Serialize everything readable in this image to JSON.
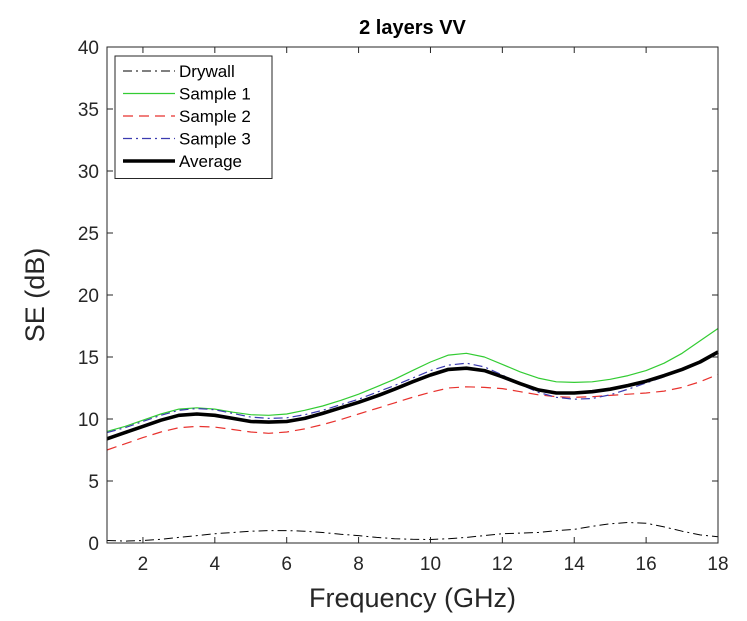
{
  "chart_data": {
    "type": "line",
    "title": "2 layers VV",
    "xlabel": "Frequency (GHz)",
    "ylabel": "SE (dB)",
    "xlim": [
      1,
      18
    ],
    "ylim": [
      0,
      40
    ],
    "xticks": [
      2,
      4,
      6,
      8,
      10,
      12,
      14,
      16,
      18
    ],
    "yticks": [
      0,
      5,
      10,
      15,
      20,
      25,
      30,
      35,
      40
    ],
    "grid": false,
    "legend_position": "top-left",
    "series": [
      {
        "name": "Drywall",
        "color": "#000000",
        "style": "dashdot",
        "width": 1,
        "x": [
          1,
          1.5,
          2,
          2.5,
          3,
          3.5,
          4,
          4.5,
          5,
          5.5,
          6,
          6.5,
          7,
          7.5,
          8,
          8.5,
          9,
          9.5,
          10,
          10.5,
          11,
          11.5,
          12,
          12.5,
          13,
          13.5,
          14,
          14.5,
          15,
          15.5,
          16,
          16.5,
          17,
          17.5,
          18
        ],
        "y": [
          0.2,
          0.15,
          0.2,
          0.3,
          0.45,
          0.6,
          0.75,
          0.85,
          0.95,
          1.0,
          1.0,
          0.95,
          0.85,
          0.7,
          0.6,
          0.45,
          0.35,
          0.3,
          0.28,
          0.35,
          0.45,
          0.6,
          0.75,
          0.8,
          0.85,
          1.0,
          1.1,
          1.35,
          1.55,
          1.65,
          1.6,
          1.3,
          0.95,
          0.65,
          0.5
        ]
      },
      {
        "name": "Sample 1",
        "color": "#33cc33",
        "style": "solid",
        "width": 1.2,
        "x": [
          1,
          1.5,
          2,
          2.5,
          3,
          3.5,
          4,
          4.5,
          5,
          5.5,
          6,
          6.5,
          7,
          7.5,
          8,
          8.5,
          9,
          9.5,
          10,
          10.5,
          11,
          11.5,
          12,
          12.5,
          13,
          13.5,
          14,
          14.5,
          15,
          15.5,
          16,
          16.5,
          17,
          17.5,
          18
        ],
        "y": [
          9.0,
          9.4,
          9.9,
          10.4,
          10.8,
          10.9,
          10.8,
          10.55,
          10.35,
          10.3,
          10.4,
          10.7,
          11.05,
          11.5,
          12.0,
          12.6,
          13.2,
          13.9,
          14.6,
          15.15,
          15.3,
          15.0,
          14.4,
          13.8,
          13.3,
          13.0,
          12.95,
          13.0,
          13.2,
          13.5,
          13.9,
          14.5,
          15.3,
          16.3,
          17.3
        ]
      },
      {
        "name": "Sample 2",
        "color": "#e8322e",
        "style": "dashed",
        "width": 1.2,
        "x": [
          1,
          1.5,
          2,
          2.5,
          3,
          3.5,
          4,
          4.5,
          5,
          5.5,
          6,
          6.5,
          7,
          7.5,
          8,
          8.5,
          9,
          9.5,
          10,
          10.5,
          11,
          11.5,
          12,
          12.5,
          13,
          13.5,
          14,
          14.5,
          15,
          15.5,
          16,
          16.5,
          17,
          17.5,
          18
        ],
        "y": [
          7.5,
          8.0,
          8.5,
          8.95,
          9.3,
          9.4,
          9.35,
          9.15,
          8.95,
          8.85,
          8.95,
          9.2,
          9.55,
          9.95,
          10.4,
          10.85,
          11.3,
          11.75,
          12.15,
          12.5,
          12.6,
          12.55,
          12.45,
          12.2,
          11.95,
          11.8,
          11.75,
          11.8,
          11.9,
          12.0,
          12.1,
          12.25,
          12.55,
          13.0,
          13.6
        ]
      },
      {
        "name": "Sample 3",
        "color": "#3b3bb0",
        "style": "dashdot",
        "width": 1.2,
        "x": [
          1,
          1.5,
          2,
          2.5,
          3,
          3.5,
          4,
          4.5,
          5,
          5.5,
          6,
          6.5,
          7,
          7.5,
          8,
          8.5,
          9,
          9.5,
          10,
          10.5,
          11,
          11.5,
          12,
          12.5,
          13,
          13.5,
          14,
          14.5,
          15,
          15.5,
          16,
          16.5,
          17,
          17.5,
          18
        ],
        "y": [
          8.9,
          9.3,
          9.8,
          10.3,
          10.7,
          10.85,
          10.75,
          10.45,
          10.15,
          10.05,
          10.1,
          10.35,
          10.7,
          11.15,
          11.6,
          12.15,
          12.7,
          13.3,
          13.9,
          14.35,
          14.5,
          14.2,
          13.55,
          12.8,
          12.15,
          11.75,
          11.6,
          11.65,
          11.95,
          12.4,
          12.9,
          13.4,
          14.0,
          14.6,
          15.3
        ]
      },
      {
        "name": "Average",
        "color": "#000000",
        "style": "solid",
        "width": 3.6,
        "x": [
          1,
          1.5,
          2,
          2.5,
          3,
          3.5,
          4,
          4.5,
          5,
          5.5,
          6,
          6.5,
          7,
          7.5,
          8,
          8.5,
          9,
          9.5,
          10,
          10.5,
          11,
          11.5,
          12,
          12.5,
          13,
          13.5,
          14,
          14.5,
          15,
          15.5,
          16,
          16.5,
          17,
          17.5,
          18
        ],
        "y": [
          8.4,
          8.9,
          9.4,
          9.9,
          10.3,
          10.4,
          10.3,
          10.05,
          9.8,
          9.75,
          9.8,
          10.05,
          10.45,
          10.9,
          11.35,
          11.85,
          12.4,
          13.0,
          13.55,
          14.0,
          14.1,
          13.9,
          13.4,
          12.85,
          12.35,
          12.1,
          12.1,
          12.2,
          12.4,
          12.7,
          13.05,
          13.5,
          14.0,
          14.6,
          15.4
        ]
      }
    ]
  }
}
